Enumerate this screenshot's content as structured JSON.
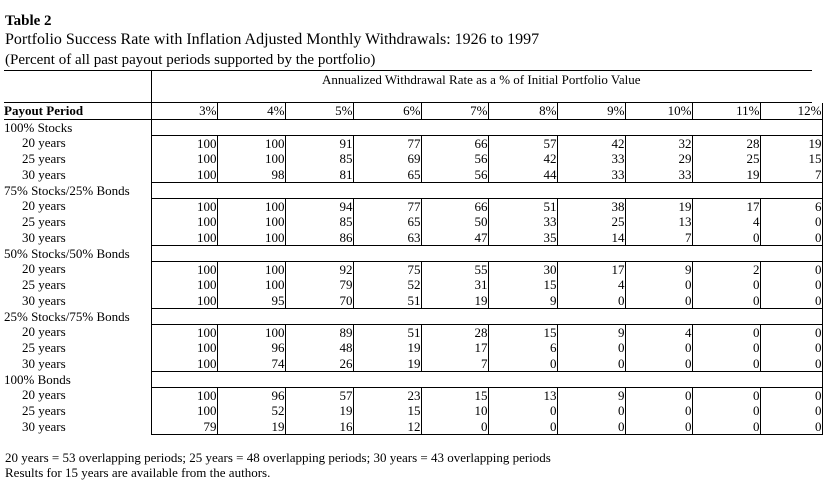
{
  "table": {
    "title": "Table 2",
    "subtitle": "Portfolio Success Rate with Inflation Adjusted Monthly Withdrawals: 1926 to 1997",
    "note": "(Percent of all past payout periods supported by the portfolio)",
    "rate_header": "Annualized Withdrawal Rate as a % of Initial Portfolio Value",
    "period_header": "Payout Period",
    "rates": [
      "3%",
      "4%",
      "5%",
      "6%",
      "7%",
      "8%",
      "9%",
      "10%",
      "11%",
      "12%"
    ],
    "groups": [
      {
        "name": "100% Stocks",
        "rows": [
          {
            "period": "20 years",
            "values": [
              "100",
              "100",
              "91",
              "77",
              "66",
              "57",
              "42",
              "32",
              "28",
              "19"
            ]
          },
          {
            "period": "25 years",
            "values": [
              "100",
              "100",
              "85",
              "69",
              "56",
              "42",
              "33",
              "29",
              "25",
              "15"
            ]
          },
          {
            "period": "30 years",
            "values": [
              "100",
              "98",
              "81",
              "65",
              "56",
              "44",
              "33",
              "33",
              "19",
              "7"
            ]
          }
        ]
      },
      {
        "name": "75% Stocks/25% Bonds",
        "rows": [
          {
            "period": "20 years",
            "values": [
              "100",
              "100",
              "94",
              "77",
              "66",
              "51",
              "38",
              "19",
              "17",
              "6"
            ]
          },
          {
            "period": "25 years",
            "values": [
              "100",
              "100",
              "85",
              "65",
              "50",
              "33",
              "25",
              "13",
              "4",
              "0"
            ]
          },
          {
            "period": "30 years",
            "values": [
              "100",
              "100",
              "86",
              "63",
              "47",
              "35",
              "14",
              "7",
              "0",
              "0"
            ]
          }
        ]
      },
      {
        "name": "50% Stocks/50% Bonds",
        "rows": [
          {
            "period": "20 years",
            "values": [
              "100",
              "100",
              "92",
              "75",
              "55",
              "30",
              "17",
              "9",
              "2",
              "0"
            ]
          },
          {
            "period": "25 years",
            "values": [
              "100",
              "100",
              "79",
              "52",
              "31",
              "15",
              "4",
              "0",
              "0",
              "0"
            ]
          },
          {
            "period": "30 years",
            "values": [
              "100",
              "95",
              "70",
              "51",
              "19",
              "9",
              "0",
              "0",
              "0",
              "0"
            ]
          }
        ]
      },
      {
        "name": "25% Stocks/75% Bonds",
        "rows": [
          {
            "period": "20 years",
            "values": [
              "100",
              "100",
              "89",
              "51",
              "28",
              "15",
              "9",
              "4",
              "0",
              "0"
            ]
          },
          {
            "period": "25 years",
            "values": [
              "100",
              "96",
              "48",
              "19",
              "17",
              "6",
              "0",
              "0",
              "0",
              "0"
            ]
          },
          {
            "period": "30 years",
            "values": [
              "100",
              "74",
              "26",
              "19",
              "7",
              "0",
              "0",
              "0",
              "0",
              "0"
            ]
          }
        ]
      },
      {
        "name": "100% Bonds",
        "rows": [
          {
            "period": "20 years",
            "values": [
              "100",
              "96",
              "57",
              "23",
              "15",
              "13",
              "9",
              "0",
              "0",
              "0"
            ]
          },
          {
            "period": "25 years",
            "values": [
              "100",
              "52",
              "19",
              "15",
              "10",
              "0",
              "0",
              "0",
              "0",
              "0"
            ]
          },
          {
            "period": "30 years",
            "values": [
              "79",
              "19",
              "16",
              "12",
              "0",
              "0",
              "0",
              "0",
              "0",
              "0"
            ]
          }
        ]
      }
    ],
    "footnote1": "20 years = 53 overlapping periods; 25 years = 48 overlapping periods; 30 years = 43 overlapping periods",
    "footnote2": "Results for 15 years are available from the authors."
  }
}
